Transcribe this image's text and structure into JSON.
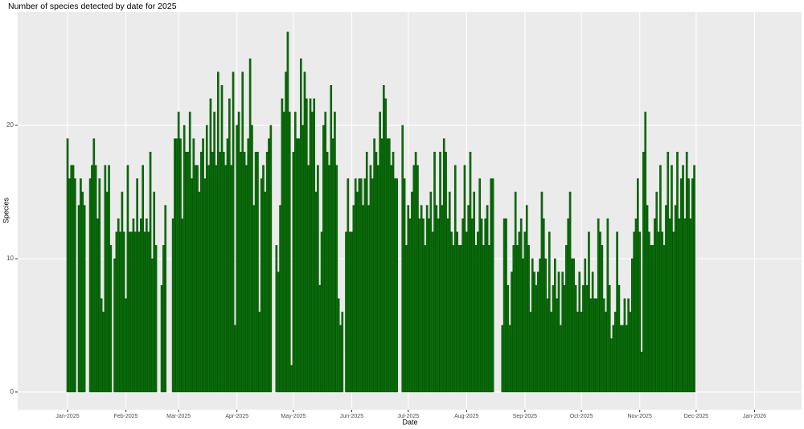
{
  "chart_data": {
    "type": "bar",
    "title": "Number of species detected by date for 2025",
    "x_label": "Date",
    "y_label": "Species",
    "color": "#0a6e0a",
    "xlim": [
      -26.5,
      390
    ],
    "ylim": [
      -1.33,
      28.5
    ],
    "xticks": [
      {
        "value": 0,
        "label": "Jan-2025"
      },
      {
        "value": 31,
        "label": "Feb-2025"
      },
      {
        "value": 59,
        "label": "Mar-2025"
      },
      {
        "value": 90,
        "label": "Apr-2025"
      },
      {
        "value": 120,
        "label": "May-2025"
      },
      {
        "value": 151,
        "label": "Jun-2025"
      },
      {
        "value": 181,
        "label": "Jul-2025"
      },
      {
        "value": 212,
        "label": "Aug-2025"
      },
      {
        "value": 243,
        "label": "Sep-2025"
      },
      {
        "value": 273,
        "label": "Oct-2025"
      },
      {
        "value": 304,
        "label": "Nov-2025"
      },
      {
        "value": 334,
        "label": "Dec-2025"
      },
      {
        "value": 365,
        "label": "Jan-2026"
      }
    ],
    "yticks": [
      0,
      10,
      20
    ],
    "grid": true,
    "x": [
      0,
      1,
      2,
      3,
      4,
      5,
      6,
      7,
      8,
      9,
      10,
      11,
      12,
      13,
      14,
      15,
      16,
      17,
      18,
      19,
      20,
      21,
      22,
      23,
      24,
      25,
      26,
      27,
      28,
      29,
      30,
      31,
      32,
      33,
      34,
      35,
      36,
      37,
      38,
      39,
      40,
      41,
      42,
      43,
      44,
      45,
      46,
      47,
      48,
      49,
      50,
      51,
      52,
      53,
      54,
      55,
      56,
      57,
      58,
      59,
      60,
      61,
      62,
      63,
      64,
      65,
      66,
      67,
      68,
      69,
      70,
      71,
      72,
      73,
      74,
      75,
      76,
      77,
      78,
      79,
      80,
      81,
      82,
      83,
      84,
      85,
      86,
      87,
      88,
      89,
      90,
      91,
      92,
      93,
      94,
      95,
      96,
      97,
      98,
      99,
      100,
      101,
      102,
      103,
      104,
      105,
      106,
      107,
      108,
      109,
      110,
      111,
      112,
      113,
      114,
      115,
      116,
      117,
      118,
      119,
      120,
      121,
      122,
      123,
      124,
      125,
      126,
      127,
      128,
      129,
      130,
      131,
      132,
      133,
      134,
      135,
      136,
      137,
      138,
      139,
      140,
      141,
      142,
      143,
      144,
      145,
      146,
      147,
      148,
      149,
      150,
      151,
      152,
      153,
      154,
      155,
      156,
      157,
      158,
      159,
      160,
      161,
      162,
      163,
      164,
      165,
      166,
      167,
      168,
      169,
      170,
      171,
      172,
      173,
      174,
      175,
      176,
      177,
      178,
      179,
      180,
      181,
      182,
      183,
      184,
      185,
      186,
      187,
      188,
      189,
      190,
      191,
      192,
      193,
      194,
      195,
      196,
      197,
      198,
      199,
      200,
      201,
      202,
      203,
      204,
      205,
      206,
      207,
      208,
      209,
      210,
      211,
      212,
      213,
      214,
      215,
      216,
      217,
      218,
      219,
      220,
      221,
      222,
      223,
      224,
      225,
      226,
      227,
      228,
      229,
      230,
      231,
      232,
      233,
      234,
      235,
      236,
      237,
      238,
      239,
      240,
      241,
      242,
      243,
      244,
      245,
      246,
      247,
      248,
      249,
      250,
      251,
      252,
      253,
      254,
      255,
      256,
      257,
      258,
      259,
      260,
      261,
      262,
      263,
      264,
      265,
      266,
      267,
      268,
      269,
      270,
      271,
      272,
      273,
      274,
      275,
      276,
      277,
      278,
      279,
      280,
      281,
      282,
      283,
      284,
      285,
      286,
      287,
      288,
      289,
      290,
      291,
      292,
      293,
      294,
      295,
      296,
      297,
      298,
      299,
      300,
      301,
      302,
      303,
      304,
      305,
      306,
      307,
      308,
      309,
      310,
      311,
      312,
      313,
      314,
      315,
      316,
      317,
      318,
      319,
      320,
      321,
      322,
      323,
      324,
      325,
      326,
      327,
      328,
      329,
      330,
      331,
      332,
      333
    ],
    "values": [
      19,
      16,
      17,
      17,
      16,
      0,
      14,
      16,
      15,
      14,
      0,
      0,
      16,
      17,
      19,
      17,
      13,
      16,
      7,
      6,
      17,
      15,
      17,
      11,
      0,
      10,
      12,
      13,
      12,
      15,
      12,
      7,
      17,
      12,
      12,
      13,
      12,
      16,
      12,
      13,
      17,
      12,
      13,
      12,
      18,
      10,
      15,
      11,
      0,
      0,
      8,
      11,
      14,
      0,
      0,
      0,
      13,
      19,
      19,
      21,
      19,
      13,
      20,
      18,
      18,
      21,
      16,
      19,
      17,
      17,
      15,
      18,
      19,
      16,
      20,
      17,
      22,
      18,
      21,
      17,
      24,
      18,
      23,
      18,
      17,
      19,
      22,
      17,
      24,
      5,
      20,
      21,
      18,
      24,
      18,
      17,
      19,
      25,
      20,
      14,
      18,
      18,
      6,
      16,
      17,
      15,
      18,
      19,
      20,
      0,
      0,
      11,
      9,
      14,
      22,
      21,
      24,
      27,
      21,
      2,
      18,
      21,
      19,
      19,
      25,
      20,
      24,
      22,
      17,
      22,
      21,
      22,
      15,
      17,
      8,
      12,
      20,
      21,
      18,
      17,
      23,
      19,
      21,
      17,
      7,
      5,
      6,
      0,
      12,
      16,
      12,
      12,
      14,
      16,
      15,
      16,
      16,
      14,
      16,
      18,
      14,
      17,
      16,
      19,
      18,
      17,
      21,
      19,
      23,
      22,
      19,
      19,
      17,
      18,
      16,
      16,
      0,
      0,
      20,
      16,
      11,
      14,
      13,
      15,
      17,
      18,
      17,
      13,
      14,
      13,
      11,
      14,
      13,
      15,
      12,
      18,
      14,
      13,
      18,
      14,
      19,
      18,
      13,
      15,
      12,
      11,
      17,
      12,
      11,
      11,
      13,
      17,
      12,
      14,
      18,
      13,
      15,
      11,
      12,
      16,
      13,
      11,
      13,
      14,
      11,
      16,
      16,
      0,
      0,
      0,
      0,
      5,
      13,
      13,
      8,
      5,
      9,
      11,
      15,
      11,
      12,
      13,
      10,
      12,
      14,
      11,
      6,
      10,
      9,
      8,
      9,
      10,
      15,
      13,
      10,
      7,
      12,
      6,
      8,
      10,
      7,
      9,
      5,
      9,
      8,
      11,
      13,
      15,
      10,
      10,
      8,
      6,
      9,
      6,
      8,
      10,
      8,
      12,
      7,
      9,
      7,
      7,
      13,
      12,
      11,
      7,
      6,
      13,
      8,
      4,
      5,
      6,
      12,
      8,
      5,
      5,
      7,
      5,
      7,
      6,
      10,
      12,
      13,
      16,
      12,
      3,
      18,
      21,
      14,
      12,
      11,
      11,
      13,
      15,
      12,
      17,
      12,
      11,
      14,
      18,
      13,
      17,
      12,
      14,
      18,
      13,
      16,
      17,
      13,
      18,
      16,
      13,
      16,
      17
    ]
  }
}
